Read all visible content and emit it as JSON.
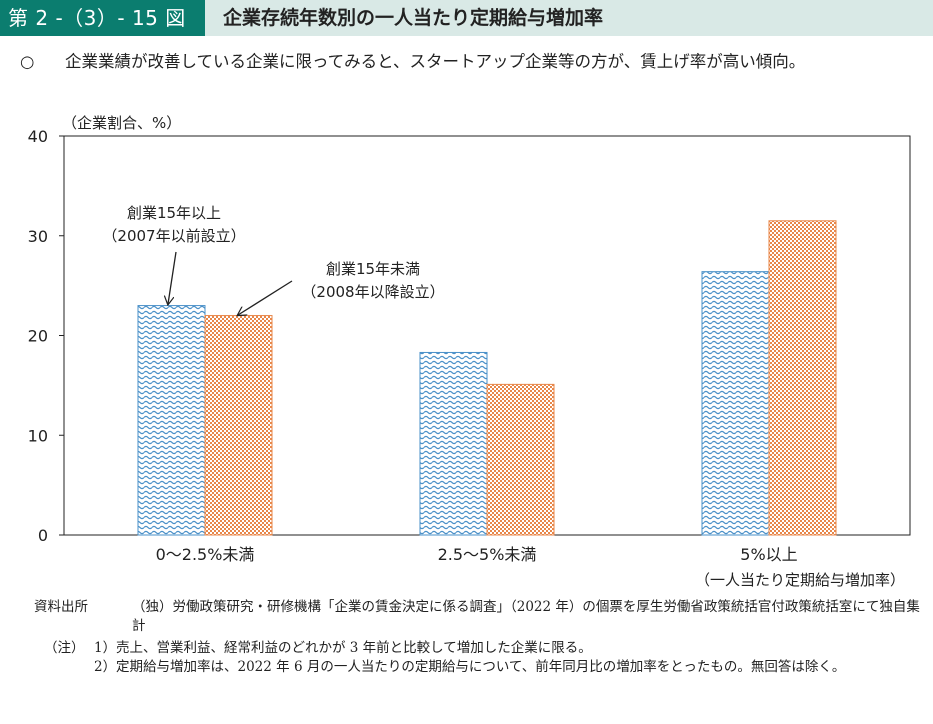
{
  "figure": {
    "label": "第 2 -（3）- 15 図",
    "title": "企業存続年数別の一人当たり定期給与増加率"
  },
  "summary": {
    "mark": "○",
    "text": "企業業績が改善している企業に限ってみると、スタートアップ企業等の方が、賃上げ率が高い傾向。"
  },
  "colors": {
    "header_bg": "#0b7d6f",
    "title_bg": "#d9e9e6",
    "series_1": "#4a90c8",
    "series_2": "#e8874a"
  },
  "chart_data": {
    "type": "bar",
    "unit_label": "（企業割合、%）",
    "categories": [
      "0～2.5%未満",
      "2.5～5%未満",
      "5%以上"
    ],
    "x_caption": "（一人当たり定期給与増加率）",
    "ylim": [
      0,
      40
    ],
    "yticks": [
      0,
      10,
      20,
      30,
      40
    ],
    "grid": false,
    "series": [
      {
        "name_line1": "創業15年以上",
        "name_line2": "（2007年以前設立）",
        "values": [
          23.0,
          18.3,
          26.4
        ]
      },
      {
        "name_line1": "創業15年未満",
        "name_line2": "（2008年以降設立）",
        "values": [
          22.0,
          15.1,
          31.5
        ]
      }
    ]
  },
  "footer": {
    "source_label": "資料出所",
    "source_text": "（独）労働政策研究・研修機構「企業の賃金決定に係る調査」（2022 年）の個票を厚生労働省政策統括官付政策統括室にて独自集計",
    "notes_label": "（注）",
    "notes": [
      {
        "num": "1）",
        "text": "売上、営業利益、経常利益のどれかが 3 年前と比較して増加した企業に限る。"
      },
      {
        "num": "2）",
        "text": "定期給与増加率は、2022 年 6 月の一人当たりの定期給与について、前年同月比の増加率をとったもの。無回答は除く。"
      }
    ]
  }
}
